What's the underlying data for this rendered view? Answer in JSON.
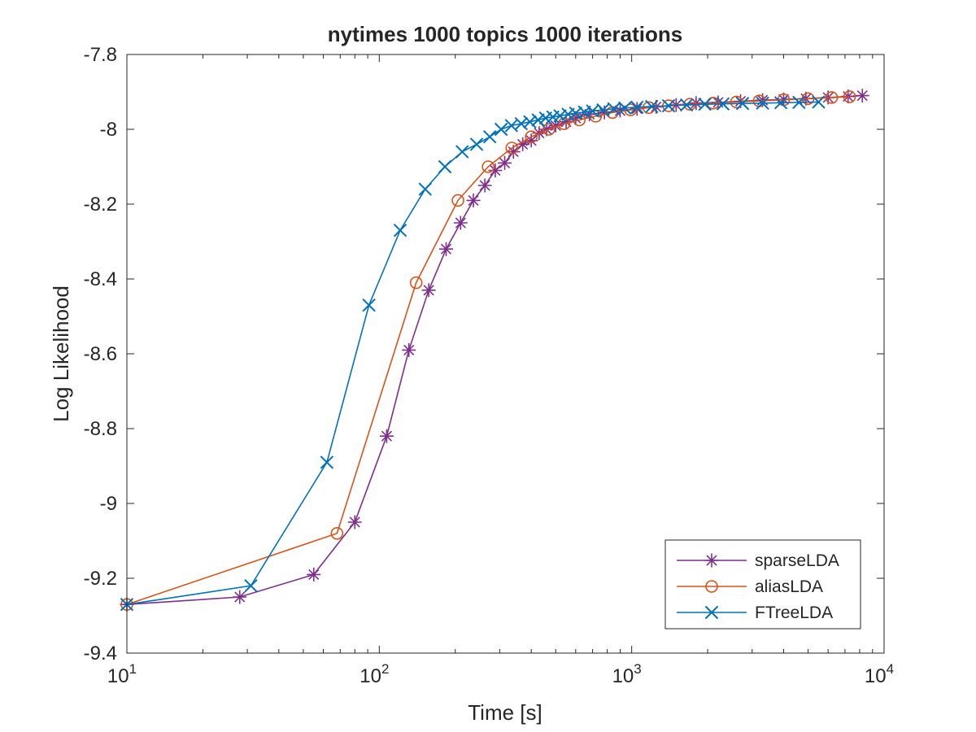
{
  "chart_data": {
    "type": "line",
    "title": "nytimes 1000 topics 1000 iterations",
    "xlabel": "Time [s]",
    "ylabel": "Log Likelihood",
    "xscale": "log",
    "xlim": [
      10,
      10000
    ],
    "ylim": [
      -9.4,
      -7.8
    ],
    "x_ticks": [
      {
        "value": 10,
        "base": "10",
        "exp": "1"
      },
      {
        "value": 100,
        "base": "10",
        "exp": "2"
      },
      {
        "value": 1000,
        "base": "10",
        "exp": "3"
      },
      {
        "value": 10000,
        "base": "10",
        "exp": "4"
      }
    ],
    "y_ticks": [
      {
        "value": -7.8,
        "label": "-7.8"
      },
      {
        "value": -8.0,
        "label": "-8"
      },
      {
        "value": -8.2,
        "label": "-8.2"
      },
      {
        "value": -8.4,
        "label": "-8.4"
      },
      {
        "value": -8.6,
        "label": "-8.6"
      },
      {
        "value": -8.8,
        "label": "-8.8"
      },
      {
        "value": -9.0,
        "label": "-9"
      },
      {
        "value": -9.2,
        "label": "-9.2"
      },
      {
        "value": -9.4,
        "label": "-9.4"
      }
    ],
    "grid": false,
    "legend_position": "bottom-right",
    "series": [
      {
        "name": "sparseLDA",
        "color": "#7E2F8E",
        "marker": "asterisk",
        "x": [
          10,
          28,
          55,
          80,
          107,
          131,
          157,
          184,
          210,
          236,
          262,
          288,
          314,
          340,
          370,
          400,
          430,
          460,
          500,
          550,
          600,
          680,
          780,
          900,
          1050,
          1250,
          1500,
          1800,
          2200,
          2700,
          3300,
          4000,
          4900,
          6000,
          7200,
          8200
        ],
        "y": [
          -9.27,
          -9.25,
          -9.19,
          -9.05,
          -8.82,
          -8.59,
          -8.43,
          -8.32,
          -8.25,
          -8.19,
          -8.15,
          -8.11,
          -8.09,
          -8.06,
          -8.04,
          -8.03,
          -8.01,
          -8.0,
          -7.99,
          -7.98,
          -7.97,
          -7.96,
          -7.955,
          -7.95,
          -7.945,
          -7.94,
          -7.935,
          -7.93,
          -7.928,
          -7.925,
          -7.922,
          -7.92,
          -7.918,
          -7.915,
          -7.912,
          -7.91
        ]
      },
      {
        "name": "aliasLDA",
        "color": "#D95319",
        "marker": "circle",
        "x": [
          10,
          68,
          140,
          205,
          270,
          335,
          400,
          470,
          540,
          620,
          720,
          840,
          990,
          1170,
          1400,
          1700,
          2100,
          2600,
          3200,
          4000,
          5000,
          6200,
          7300
        ],
        "y": [
          -9.27,
          -9.08,
          -8.41,
          -8.19,
          -8.1,
          -8.05,
          -8.02,
          -8.0,
          -7.985,
          -7.975,
          -7.965,
          -7.955,
          -7.948,
          -7.942,
          -7.937,
          -7.933,
          -7.93,
          -7.927,
          -7.924,
          -7.921,
          -7.918,
          -7.915,
          -7.913
        ]
      },
      {
        "name": "FTreeLDA",
        "color": "#0072BD",
        "marker": "x",
        "x": [
          10,
          31,
          62,
          91,
          121,
          152,
          182,
          213,
          243,
          274,
          304,
          334,
          365,
          395,
          426,
          456,
          487,
          520,
          560,
          600,
          650,
          700,
          770,
          850,
          940,
          1050,
          1200,
          1400,
          1650,
          1950,
          2300,
          2750,
          3300,
          3900,
          4600,
          5500
        ],
        "y": [
          -9.27,
          -9.22,
          -8.89,
          -8.47,
          -8.27,
          -8.16,
          -8.1,
          -8.06,
          -8.04,
          -8.02,
          -8.0,
          -7.99,
          -7.985,
          -7.98,
          -7.975,
          -7.97,
          -7.967,
          -7.964,
          -7.96,
          -7.957,
          -7.954,
          -7.951,
          -7.948,
          -7.945,
          -7.943,
          -7.941,
          -7.939,
          -7.937,
          -7.935,
          -7.933,
          -7.932,
          -7.931,
          -7.93,
          -7.929,
          -7.928,
          -7.927
        ]
      }
    ]
  }
}
